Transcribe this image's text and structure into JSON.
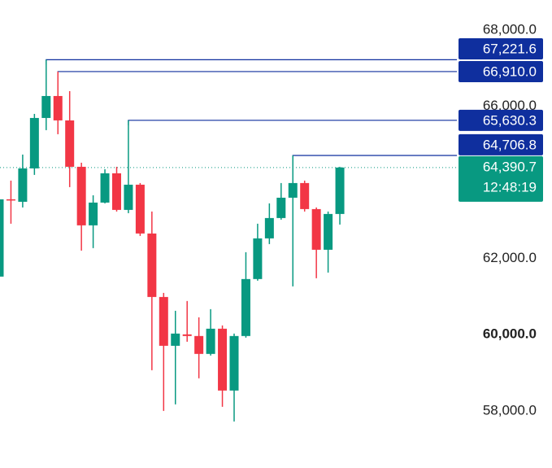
{
  "chart_data": {
    "type": "candlestick",
    "ylim": [
      56500,
      68790
    ],
    "yticks": [
      {
        "value": 58000,
        "label": "58,000.0"
      },
      {
        "value": 60000,
        "label": "60,000.0",
        "bold": true
      },
      {
        "value": 62000,
        "label": "62,000.0"
      },
      {
        "value": 66000,
        "label": "66,000.0"
      },
      {
        "value": 68000,
        "label": "68,000.0"
      }
    ],
    "up_color": "#089981",
    "down_color": "#f23645",
    "open": [
      61526,
      63556,
      63491,
      64368,
      65692,
      66269,
      65628,
      64410,
      62872,
      63470,
      64239,
      63278,
      63940,
      62658,
      60991,
      59709,
      60009,
      59966,
      59496,
      60158,
      58534,
      59966,
      61462,
      62530,
      63064,
      63598,
      63983,
      63299,
      62231,
      63171
    ],
    "high": [
      63662,
      64047,
      64731,
      65799,
      67221.6,
      66910,
      66397,
      64517,
      63662,
      64346,
      64410,
      65630.3,
      63983,
      63235,
      61098,
      60628,
      60885,
      60457,
      60671,
      60244,
      60030,
      62167,
      62915,
      63449,
      63983,
      64706.8,
      64047,
      63342,
      63235,
      64410
    ],
    "low": [
      61419,
      62915,
      63342,
      64197,
      65372,
      65265,
      63876,
      62209,
      62274,
      63449,
      63235,
      63192,
      62594,
      59068,
      58000,
      58171,
      59816,
      58855,
      59453,
      58107,
      57722,
      59923,
      61419,
      62380,
      63021,
      61269,
      63235,
      61483,
      61632,
      62893
    ],
    "close": [
      63556,
      63534,
      64368,
      65692,
      66269,
      65628,
      64410,
      62872,
      63470,
      64239,
      63278,
      63940,
      62658,
      60991,
      59709,
      60030,
      59966,
      59496,
      60158,
      58534,
      59966,
      61462,
      62530,
      63064,
      63598,
      63983,
      63299,
      62231,
      63171,
      64390.7
    ],
    "price_lines": [
      {
        "value": 67221.6,
        "label": "67,221.6",
        "color": "#0f2f9e"
      },
      {
        "value": 66910.0,
        "label": "66,910.0",
        "color": "#0f2f9e"
      },
      {
        "value": 65630.3,
        "label": "65,630.3",
        "color": "#0f2f9e"
      },
      {
        "value": 64706.8,
        "label": "64,706.8",
        "color": "#0f2f9e"
      }
    ],
    "last_price": {
      "value": 64390.7,
      "label": "64,390.7",
      "countdown": "12:48:19",
      "color": "#089981"
    }
  }
}
